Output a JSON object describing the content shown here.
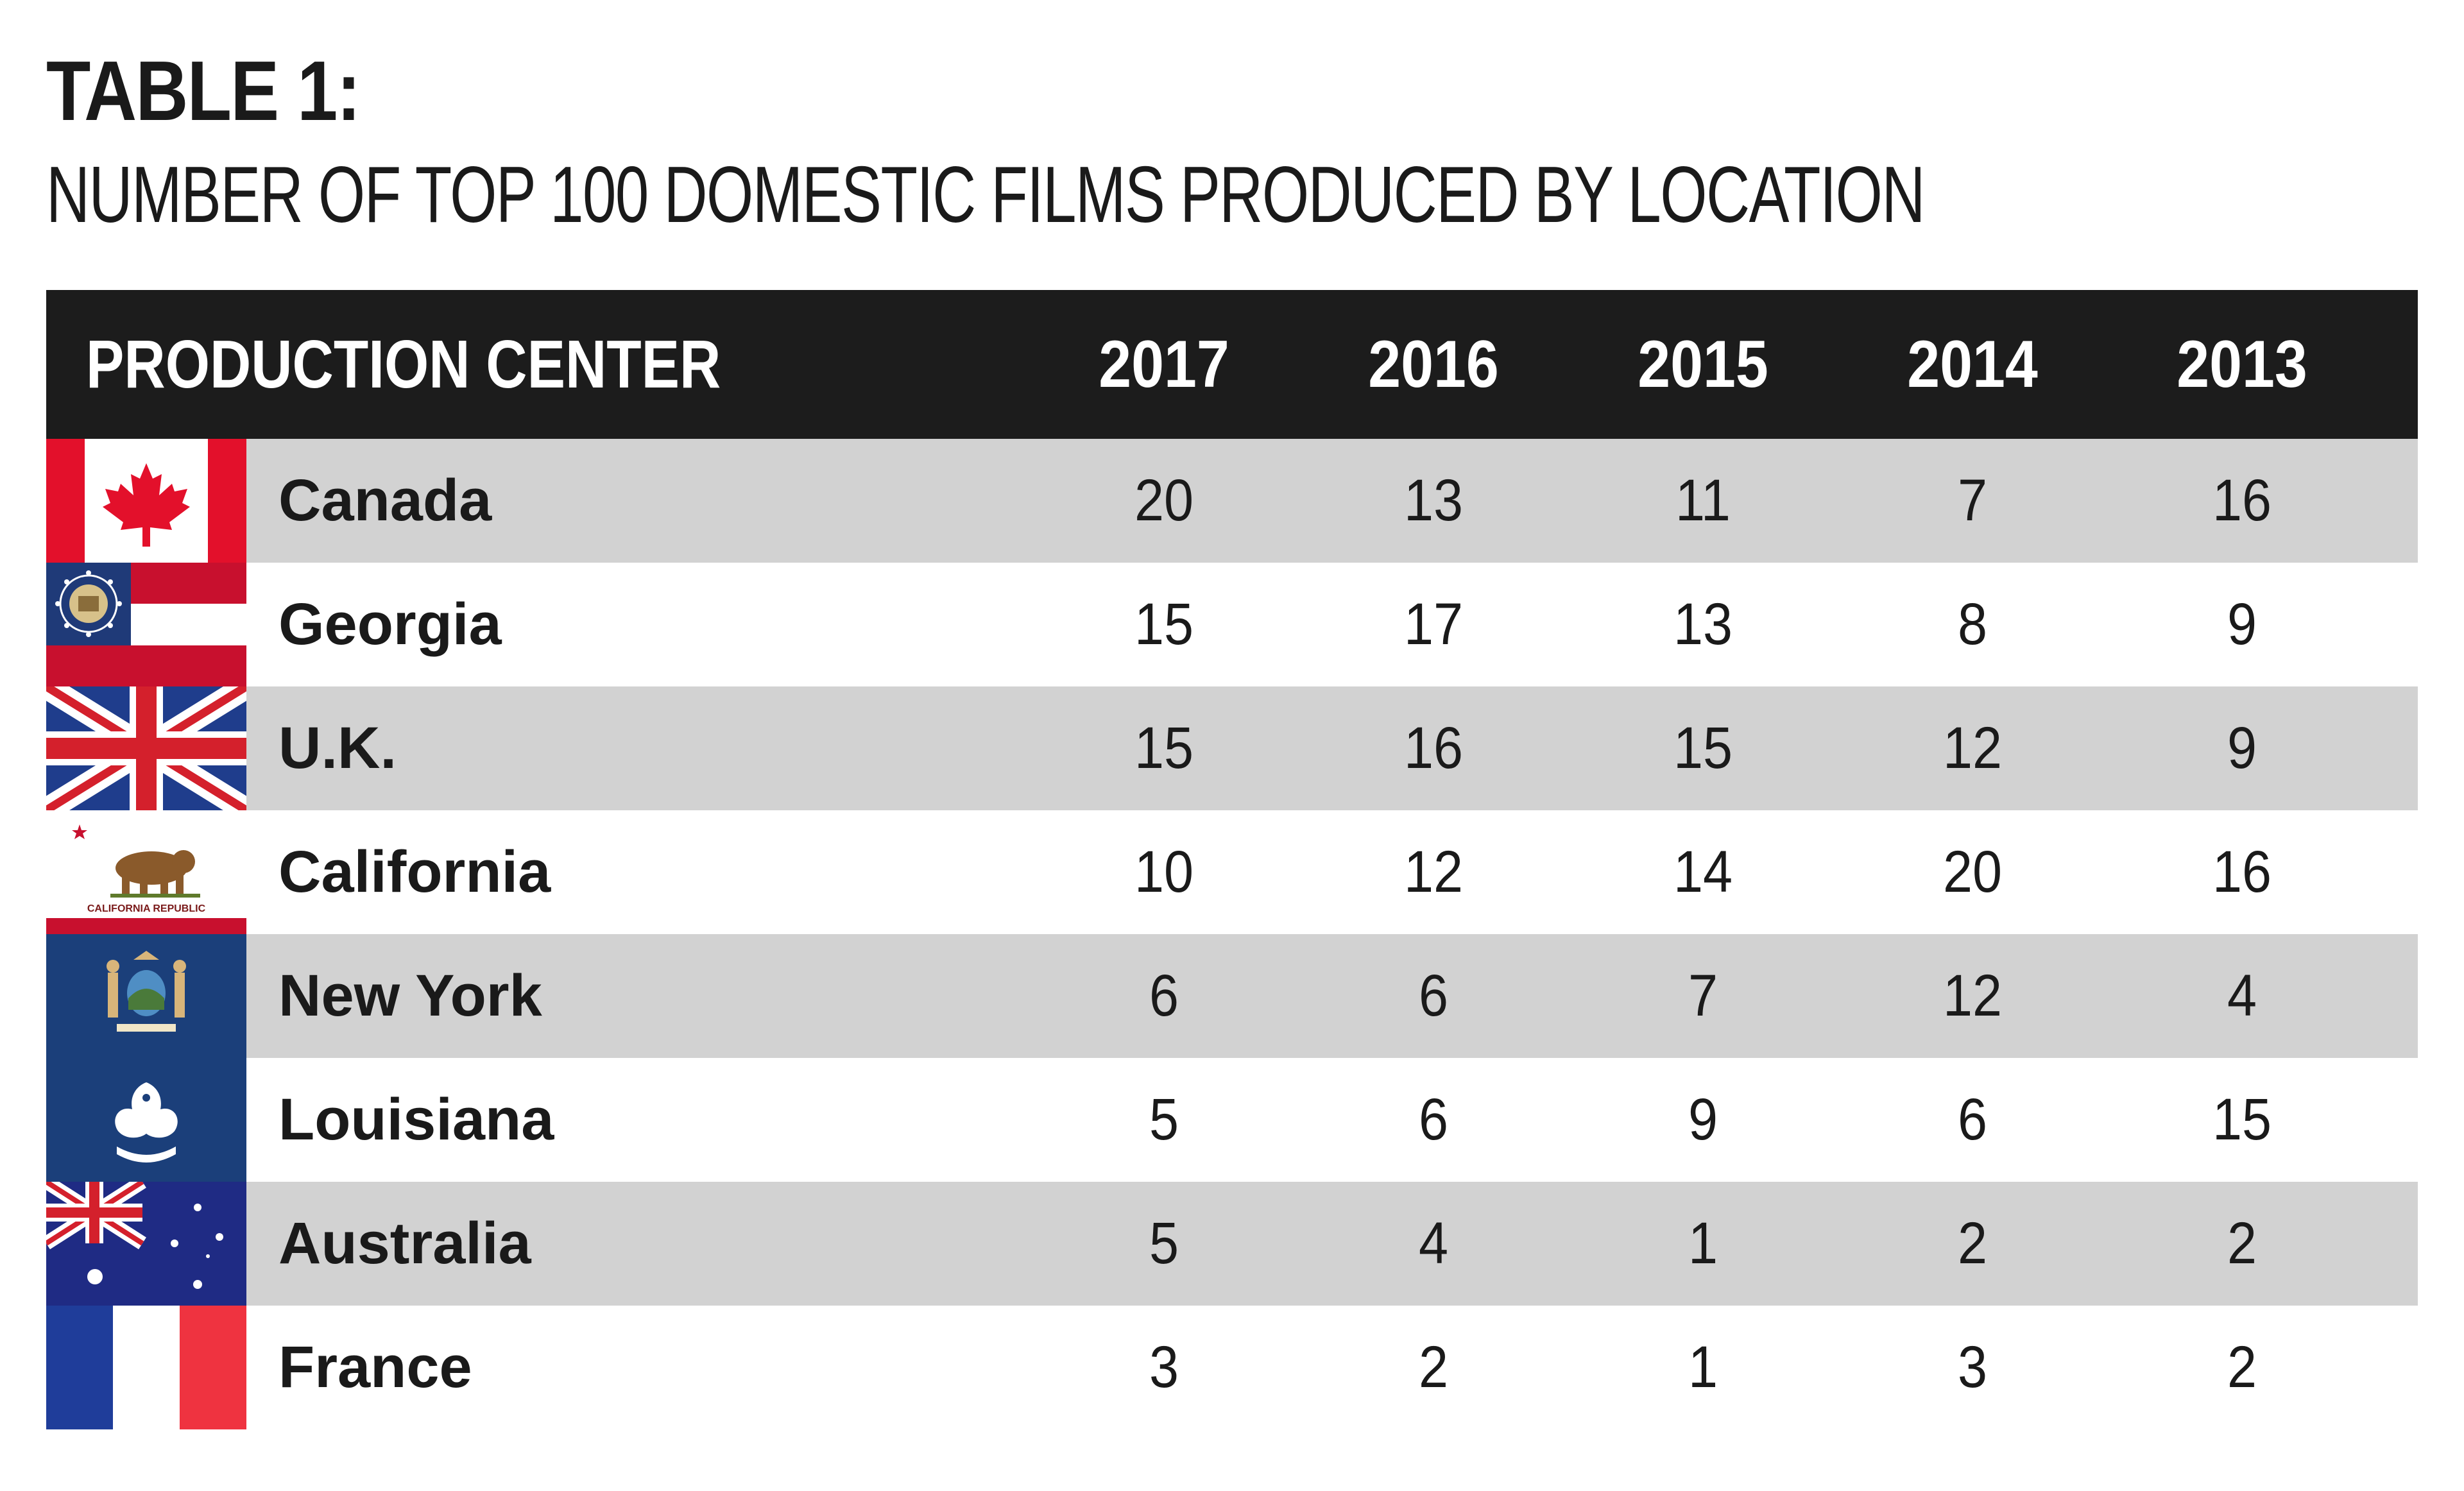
{
  "title": "TABLE 1:",
  "subtitle": "NUMBER OF TOP 100 DOMESTIC FILMS PRODUCED BY LOCATION",
  "colors": {
    "header_bg": "#1c1c1c",
    "shaded_row": "#d2d2d2",
    "plain_row": "#ffffff",
    "text": "#1a1a1a"
  },
  "chart_data": {
    "type": "table",
    "columns": [
      "PRODUCTION CENTER",
      "2017",
      "2016",
      "2015",
      "2014",
      "2013"
    ],
    "rows": [
      {
        "name": "Canada",
        "flag": "canada-flag-icon",
        "values": [
          "20",
          "13",
          "11",
          "7",
          "16"
        ]
      },
      {
        "name": "Georgia",
        "flag": "georgia-flag-icon",
        "values": [
          "15",
          "17",
          "13",
          "8",
          "9"
        ]
      },
      {
        "name": "U.K.",
        "flag": "uk-flag-icon",
        "values": [
          "15",
          "16",
          "15",
          "12",
          "9"
        ]
      },
      {
        "name": "California",
        "flag": "california-flag-icon",
        "values": [
          "10",
          "12",
          "14",
          "20",
          "16"
        ]
      },
      {
        "name": "New York",
        "flag": "new-york-flag-icon",
        "values": [
          "6",
          "6",
          "7",
          "12",
          "4"
        ]
      },
      {
        "name": "Louisiana",
        "flag": "louisiana-flag-icon",
        "values": [
          "5",
          "6",
          "9",
          "6",
          "15"
        ]
      },
      {
        "name": "Australia",
        "flag": "australia-flag-icon",
        "values": [
          "5",
          "4",
          "1",
          "2",
          "2"
        ]
      },
      {
        "name": "France",
        "flag": "france-flag-icon",
        "values": [
          "3",
          "2",
          "1",
          "3",
          "2"
        ]
      }
    ],
    "flag_text": {
      "california": "CALIFORNIA REPUBLIC"
    }
  }
}
